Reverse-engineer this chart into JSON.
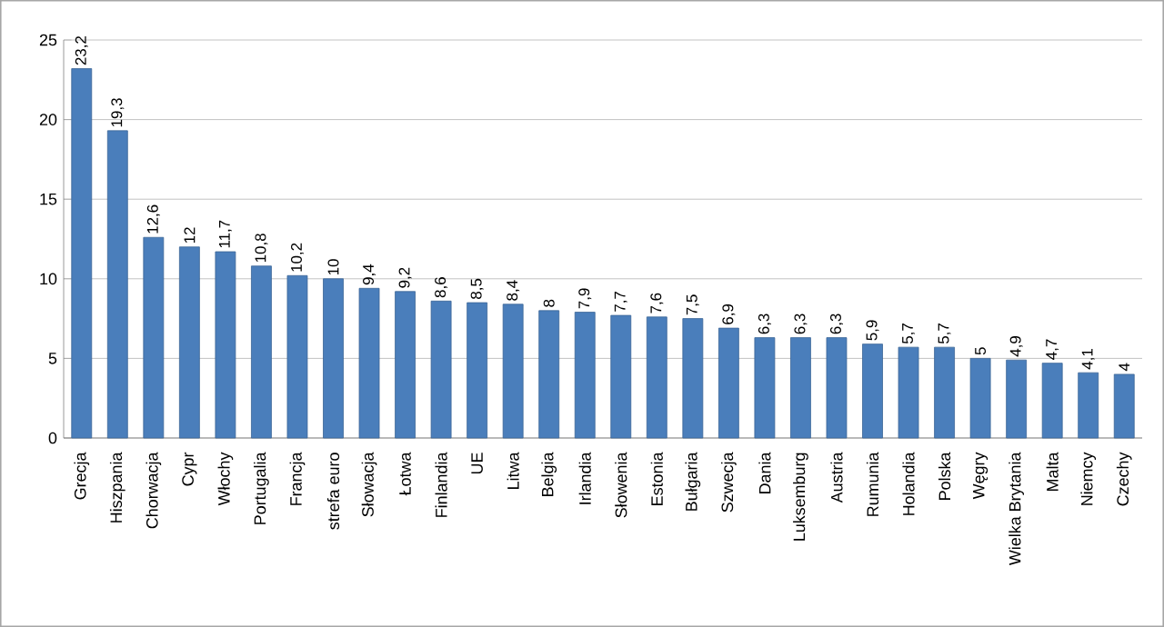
{
  "chart_data": {
    "type": "bar",
    "categories": [
      "Grecja",
      "Hiszpania",
      "Chorwacja",
      "Cypr",
      "Włochy",
      "Portugalia",
      "Francja",
      "strefa euro",
      "Słowacja",
      "Łotwa",
      "Finlandia",
      "UE",
      "Litwa",
      "Belgia",
      "Irlandia",
      "Słowenia",
      "Estonia",
      "Bułgaria",
      "Szwecja",
      "Dania",
      "Luksemburg",
      "Austria",
      "Rumunia",
      "Holandia",
      "Polska",
      "Węgry",
      "Wielka Brytania",
      "Malta",
      "Niemcy",
      "Czechy"
    ],
    "values": [
      23.2,
      19.3,
      12.6,
      12,
      11.7,
      10.8,
      10.2,
      10,
      9.4,
      9.2,
      8.6,
      8.5,
      8.4,
      8,
      7.9,
      7.7,
      7.6,
      7.5,
      6.9,
      6.3,
      6.3,
      6.3,
      5.9,
      5.7,
      5.7,
      5,
      4.9,
      4.7,
      4.1,
      4
    ],
    "value_labels": [
      "23,2",
      "19,3",
      "12,6",
      "12",
      "11,7",
      "10,8",
      "10,2",
      "10",
      "9,4",
      "9,2",
      "8,6",
      "8,5",
      "8,4",
      "8",
      "7,9",
      "7,7",
      "7,6",
      "7,5",
      "6,9",
      "6,3",
      "6,3",
      "6,3",
      "5,9",
      "5,7",
      "5,7",
      "5",
      "4,9",
      "4,7",
      "4,1",
      "4"
    ],
    "color": "#4a7ebb",
    "ylim": [
      0,
      25
    ],
    "yticks": [
      0,
      5,
      10,
      15,
      20,
      25
    ],
    "grid": "y"
  }
}
